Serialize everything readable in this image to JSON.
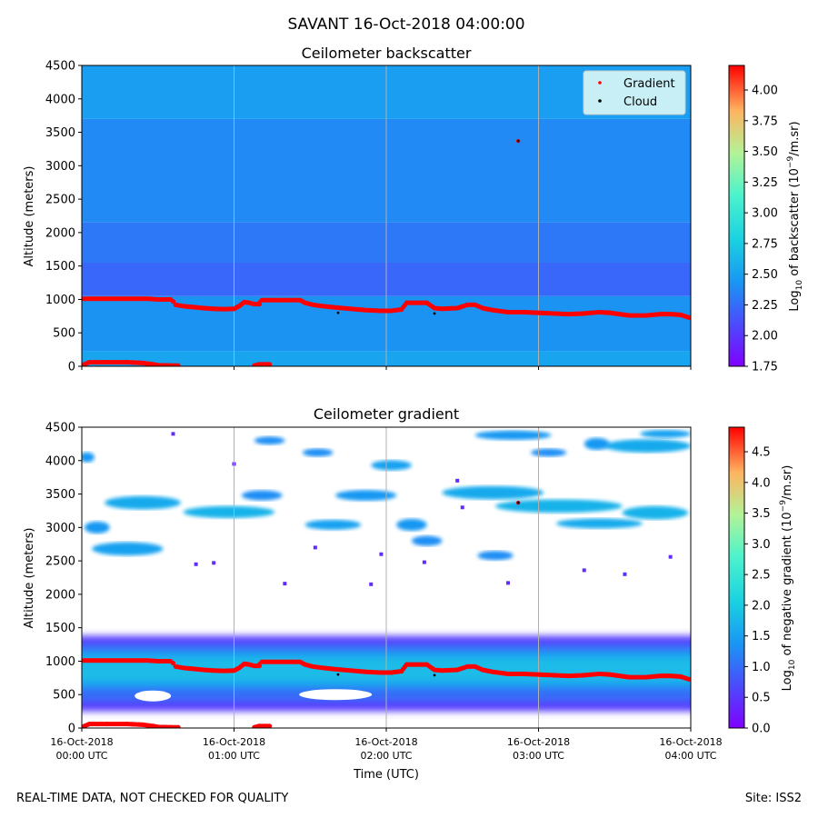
{
  "figure": {
    "suptitle": "SAVANT 16-Oct-2018 04:00:00",
    "footer_left": "REAL-TIME DATA, NOT CHECKED FOR QUALITY",
    "footer_right": "Site: ISS2",
    "xlabel": "Time (UTC)"
  },
  "chart_data": [
    {
      "type": "heatmap",
      "title": "Ceilometer backscatter",
      "ylabel": "Altitude (meters)",
      "xlabel": "",
      "ylim": [
        0,
        4500
      ],
      "xlim_minutes": [
        0,
        240
      ],
      "y_ticks": [
        "0",
        "500",
        "1000",
        "1500",
        "2000",
        "2500",
        "3000",
        "3500",
        "4000",
        "4500"
      ],
      "x_ticks": [
        {
          "date": "16-Oct-2018",
          "time": "00:00 UTC"
        },
        {
          "date": "16-Oct-2018",
          "time": "01:00 UTC"
        },
        {
          "date": "16-Oct-2018",
          "time": "02:00 UTC"
        },
        {
          "date": "16-Oct-2018",
          "time": "03:00 UTC"
        },
        {
          "date": "16-Oct-2018",
          "time": "04:00 UTC"
        }
      ],
      "colorbar": {
        "label_pre": "Log",
        "label_sub": "10",
        "label_mid": " of backscatter (10",
        "label_sup": "−9",
        "label_post": "/m.sr)",
        "min": 1.75,
        "max": 4.2,
        "ticks": [
          "1.75",
          "2.00",
          "2.25",
          "2.50",
          "2.75",
          "3.00",
          "3.25",
          "3.50",
          "3.75",
          "4.00"
        ]
      },
      "legend": {
        "location": "upper right",
        "entries": [
          {
            "label": "Gradient",
            "color": "#ff0000"
          },
          {
            "label": "Cloud",
            "color": "#000000"
          }
        ]
      },
      "background_layers": [
        {
          "from_alt": 0,
          "to_alt": 230,
          "value": 2.52
        },
        {
          "from_alt": 230,
          "to_alt": 1050,
          "value": 2.42
        },
        {
          "from_alt": 1050,
          "to_alt": 1550,
          "value": 2.22
        },
        {
          "from_alt": 1550,
          "to_alt": 2150,
          "value": 2.3
        },
        {
          "from_alt": 2150,
          "to_alt": 3700,
          "value": 2.38
        },
        {
          "from_alt": 3700,
          "to_alt": 4500,
          "value": 2.48
        }
      ]
    },
    {
      "type": "heatmap",
      "title": "Ceilometer gradient",
      "ylabel": "Altitude (meters)",
      "xlabel": "Time (UTC)",
      "ylim": [
        0,
        4500
      ],
      "xlim_minutes": [
        0,
        240
      ],
      "y_ticks": [
        "0",
        "500",
        "1000",
        "1500",
        "2000",
        "2500",
        "3000",
        "3500",
        "4000",
        "4500"
      ],
      "colorbar": {
        "label_pre": "Log",
        "label_sub": "10",
        "label_mid": " of negative gradient (10",
        "label_sup": "−9",
        "label_post": "/m.sr)",
        "min": 0.0,
        "max": 4.9,
        "ticks": [
          "0.0",
          "0.5",
          "1.0",
          "1.5",
          "2.0",
          "2.5",
          "3.0",
          "3.5",
          "4.0",
          "4.5"
        ]
      },
      "boundary_layer_band": {
        "from_alt": 250,
        "to_alt": 1380
      },
      "cloud_patches": [
        {
          "t": 2,
          "alt": 4050,
          "w": 6,
          "h": 150,
          "value": 1.4
        },
        {
          "t": 24,
          "alt": 3370,
          "w": 30,
          "h": 200,
          "value": 1.6
        },
        {
          "t": 18,
          "alt": 2680,
          "w": 28,
          "h": 200,
          "value": 1.5
        },
        {
          "t": 6,
          "alt": 3000,
          "w": 10,
          "h": 180,
          "value": 1.4
        },
        {
          "t": 58,
          "alt": 3230,
          "w": 36,
          "h": 180,
          "value": 1.7
        },
        {
          "t": 71,
          "alt": 3480,
          "w": 16,
          "h": 150,
          "value": 1.3
        },
        {
          "t": 74,
          "alt": 4300,
          "w": 12,
          "h": 120,
          "value": 1.3
        },
        {
          "t": 99,
          "alt": 3040,
          "w": 22,
          "h": 150,
          "value": 1.5
        },
        {
          "t": 112,
          "alt": 3480,
          "w": 24,
          "h": 160,
          "value": 1.4
        },
        {
          "t": 122,
          "alt": 3930,
          "w": 16,
          "h": 150,
          "value": 1.5
        },
        {
          "t": 130,
          "alt": 3040,
          "w": 12,
          "h": 180,
          "value": 1.4
        },
        {
          "t": 136,
          "alt": 2800,
          "w": 12,
          "h": 150,
          "value": 1.3
        },
        {
          "t": 162,
          "alt": 3520,
          "w": 40,
          "h": 200,
          "value": 1.6
        },
        {
          "t": 188,
          "alt": 3320,
          "w": 50,
          "h": 200,
          "value": 1.7
        },
        {
          "t": 204,
          "alt": 3060,
          "w": 34,
          "h": 150,
          "value": 1.6
        },
        {
          "t": 226,
          "alt": 3220,
          "w": 26,
          "h": 200,
          "value": 1.7
        },
        {
          "t": 223,
          "alt": 4220,
          "w": 34,
          "h": 200,
          "value": 1.6
        },
        {
          "t": 203,
          "alt": 4250,
          "w": 10,
          "h": 180,
          "value": 1.4
        },
        {
          "t": 170,
          "alt": 4380,
          "w": 30,
          "h": 140,
          "value": 1.4
        },
        {
          "t": 184,
          "alt": 4120,
          "w": 14,
          "h": 120,
          "value": 1.3
        },
        {
          "t": 230,
          "alt": 4400,
          "w": 20,
          "h": 120,
          "value": 1.5
        },
        {
          "t": 163,
          "alt": 2580,
          "w": 14,
          "h": 140,
          "value": 1.3
        },
        {
          "t": 93,
          "alt": 4120,
          "w": 12,
          "h": 120,
          "value": 1.3
        }
      ],
      "sparse_specks": [
        {
          "t": 45,
          "alt": 2450
        },
        {
          "t": 52,
          "alt": 2470
        },
        {
          "t": 80,
          "alt": 2160
        },
        {
          "t": 114,
          "alt": 2150
        },
        {
          "t": 135,
          "alt": 2480
        },
        {
          "t": 168,
          "alt": 2170
        },
        {
          "t": 198,
          "alt": 2360
        },
        {
          "t": 214,
          "alt": 2300
        },
        {
          "t": 232,
          "alt": 2560
        },
        {
          "t": 92,
          "alt": 2700
        },
        {
          "t": 150,
          "alt": 3300
        },
        {
          "t": 60,
          "alt": 3950
        },
        {
          "t": 148,
          "alt": 3700
        },
        {
          "t": 118,
          "alt": 2600
        },
        {
          "t": 36,
          "alt": 4400
        }
      ]
    }
  ],
  "gradient_points": {
    "label": "Gradient",
    "color": "#ff0000",
    "series": [
      [
        0,
        1010
      ],
      [
        3,
        1010
      ],
      [
        26,
        1010
      ],
      [
        30,
        1000
      ],
      [
        33,
        1000
      ],
      [
        35,
        1000
      ],
      [
        36,
        970
      ],
      [
        37,
        920
      ],
      [
        40,
        900
      ],
      [
        44,
        885
      ],
      [
        48,
        870
      ],
      [
        52,
        860
      ],
      [
        56,
        855
      ],
      [
        60,
        860
      ],
      [
        62,
        900
      ],
      [
        64,
        960
      ],
      [
        66,
        950
      ],
      [
        68,
        930
      ],
      [
        70,
        930
      ],
      [
        71,
        990
      ],
      [
        76,
        990
      ],
      [
        82,
        990
      ],
      [
        86,
        990
      ],
      [
        88,
        950
      ],
      [
        91,
        920
      ],
      [
        95,
        900
      ],
      [
        100,
        880
      ],
      [
        106,
        860
      ],
      [
        112,
        840
      ],
      [
        118,
        830
      ],
      [
        122,
        830
      ],
      [
        126,
        850
      ],
      [
        128,
        950
      ],
      [
        136,
        950
      ],
      [
        139,
        870
      ],
      [
        142,
        860
      ],
      [
        148,
        870
      ],
      [
        152,
        920
      ],
      [
        155,
        920
      ],
      [
        158,
        870
      ],
      [
        162,
        840
      ],
      [
        168,
        810
      ],
      [
        174,
        810
      ],
      [
        180,
        800
      ],
      [
        186,
        790
      ],
      [
        192,
        780
      ],
      [
        198,
        790
      ],
      [
        204,
        810
      ],
      [
        208,
        800
      ],
      [
        212,
        780
      ],
      [
        216,
        760
      ],
      [
        222,
        760
      ],
      [
        228,
        780
      ],
      [
        232,
        780
      ],
      [
        236,
        770
      ],
      [
        240,
        720
      ]
    ],
    "near_ground": [
      [
        1,
        30
      ],
      [
        3,
        60
      ],
      [
        10,
        60
      ],
      [
        18,
        60
      ],
      [
        24,
        50
      ],
      [
        28,
        30
      ],
      [
        30,
        15
      ],
      [
        38,
        10
      ],
      [
        68,
        10
      ],
      [
        70,
        30
      ],
      [
        74,
        30
      ]
    ],
    "isolated": [
      [
        70,
        960
      ],
      [
        65,
        960
      ],
      [
        32,
        1000
      ],
      [
        172,
        3370
      ]
    ]
  },
  "cloud_points": {
    "label": "Cloud",
    "color": "#000000",
    "series": [
      [
        101,
        800
      ],
      [
        139,
        790
      ],
      [
        172,
        3370
      ]
    ]
  }
}
